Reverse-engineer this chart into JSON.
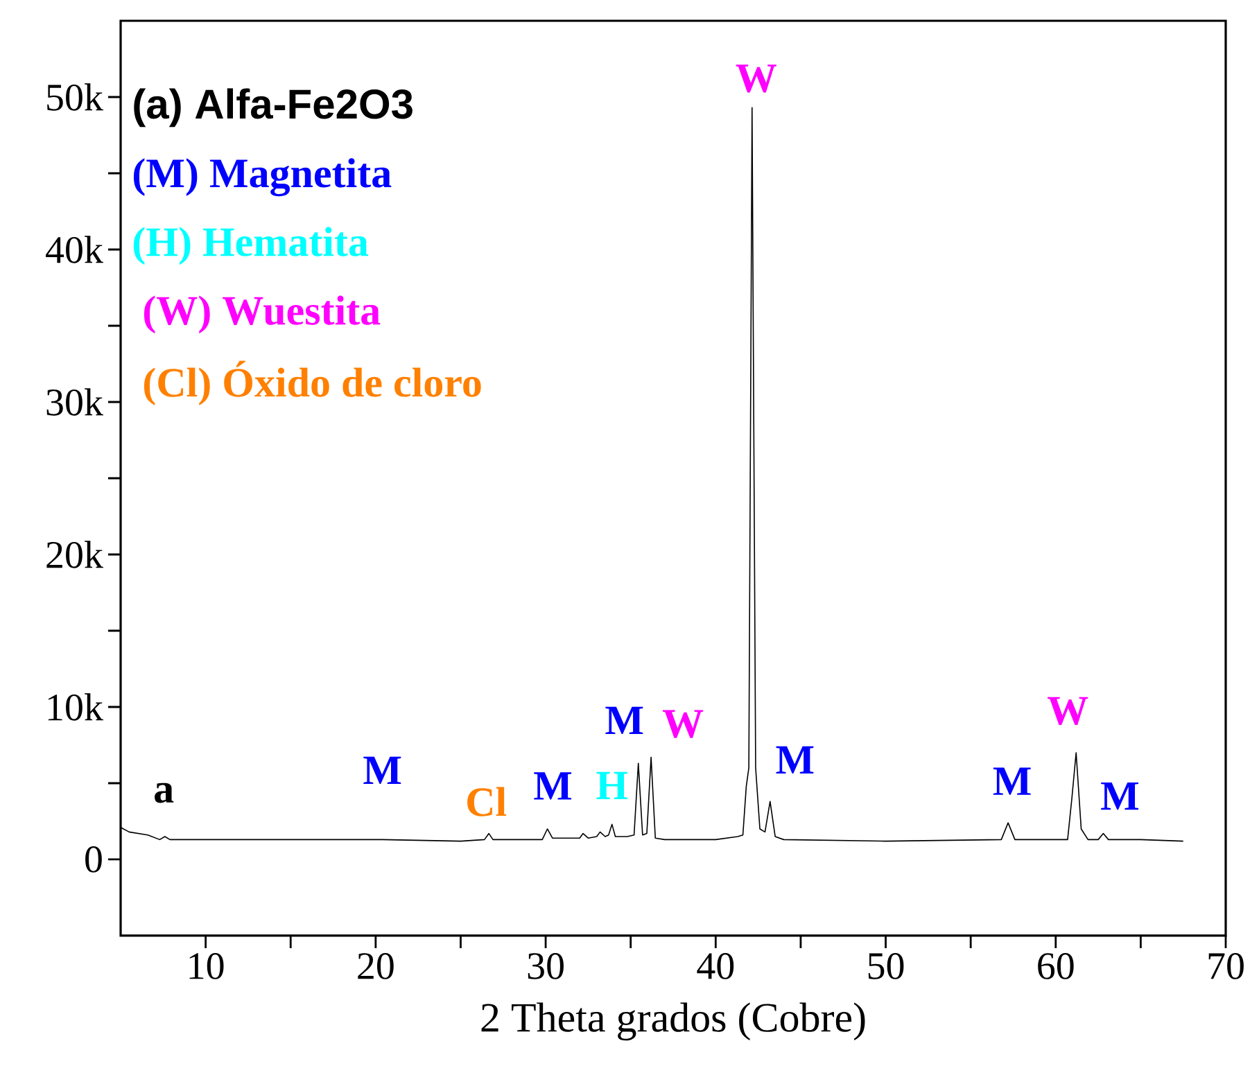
{
  "chart_data": {
    "type": "line",
    "title": "(a)  Alfa-Fe2O3",
    "xlabel": "2 Theta grados (Cobre)",
    "xlim": [
      5,
      70
    ],
    "ylim": [
      -5000,
      55000
    ],
    "xticks": [
      10,
      {
        "value": 15,
        "label": null
      },
      20,
      {
        "value": 25,
        "label": null
      },
      30,
      {
        "value": 35,
        "label": null
      },
      40,
      {
        "value": 45,
        "label": null
      },
      50,
      {
        "value": 55,
        "label": null
      },
      60,
      {
        "value": 65,
        "label": null
      },
      70
    ],
    "yticks": [
      0,
      {
        "value": 5000,
        "label": null
      },
      {
        "value": 10000,
        "label": "10k"
      },
      {
        "value": 15000,
        "label": null
      },
      {
        "value": 20000,
        "label": "20k"
      },
      {
        "value": 25000,
        "label": null
      },
      {
        "value": 30000,
        "label": "30k"
      },
      {
        "value": 35000,
        "label": null
      },
      {
        "value": 40000,
        "label": "40k"
      },
      {
        "value": 45000,
        "label": null
      },
      {
        "value": 50000,
        "label": "50k"
      }
    ],
    "series": [
      {
        "color": "#000000",
        "x": [
          5,
          5.5,
          6.6,
          7.3,
          7.6,
          7.9,
          10,
          15,
          20.4,
          25,
          26.4,
          26.66,
          26.9,
          29.8,
          30.1,
          30.4,
          32,
          32.2,
          32.5,
          33,
          33.2,
          33.5,
          33.7,
          33.9,
          34.1,
          34.8,
          35.2,
          35.45,
          35.7,
          35.95,
          36.2,
          36.45,
          37,
          40,
          41.3,
          41.6,
          41.8,
          41.95,
          42.14,
          42.35,
          42.6,
          42.9,
          43.2,
          43.5,
          44,
          50,
          56.8,
          57.2,
          57.6,
          60.7,
          60.95,
          61.2,
          61.5,
          61.9,
          62.5,
          62.8,
          63.1,
          65,
          67.5
        ],
        "values": [
          2100,
          1800,
          1600,
          1300,
          1500,
          1300,
          1300,
          1300,
          1300,
          1200,
          1300,
          1700,
          1300,
          1300,
          2000,
          1400,
          1400,
          1700,
          1400,
          1500,
          1800,
          1500,
          1600,
          2300,
          1500,
          1500,
          1600,
          6300,
          1600,
          1700,
          6700,
          1400,
          1300,
          1300,
          1500,
          1600,
          4800,
          6000,
          49300,
          6000,
          2000,
          1800,
          3800,
          1500,
          1300,
          1200,
          1300,
          2400,
          1300,
          1300,
          4000,
          7000,
          2000,
          1300,
          1300,
          1700,
          1300,
          1300,
          1200
        ]
      }
    ],
    "annotations": [
      "(M) Magnetita",
      "(H)  Hematita",
      " (W) Wuestita",
      " (Cl) Óxido de cloro",
      "a",
      {
        "text": "M",
        "x": 20.4,
        "y": 1300
      },
      {
        "text": "Cl",
        "x": 26.66,
        "y": 1700
      },
      {
        "text": "M",
        "x": 30.1,
        "y": 2000
      },
      {
        "text": "H",
        "x": 33.9,
        "y": 2300
      },
      {
        "text": "M",
        "x": 35.45,
        "y": 6300
      },
      {
        "text": "W",
        "x": 36.2,
        "y": 6700
      },
      {
        "text": "W",
        "x": 42.14,
        "y": 49300
      },
      {
        "text": "M",
        "x": 43.2,
        "y": 3800
      },
      {
        "text": "M",
        "x": 57.2,
        "y": 2400
      },
      {
        "text": "W",
        "x": 61.2,
        "y": 7000
      },
      {
        "text": "M",
        "x": 62.8,
        "y": 1700
      }
    ]
  }
}
